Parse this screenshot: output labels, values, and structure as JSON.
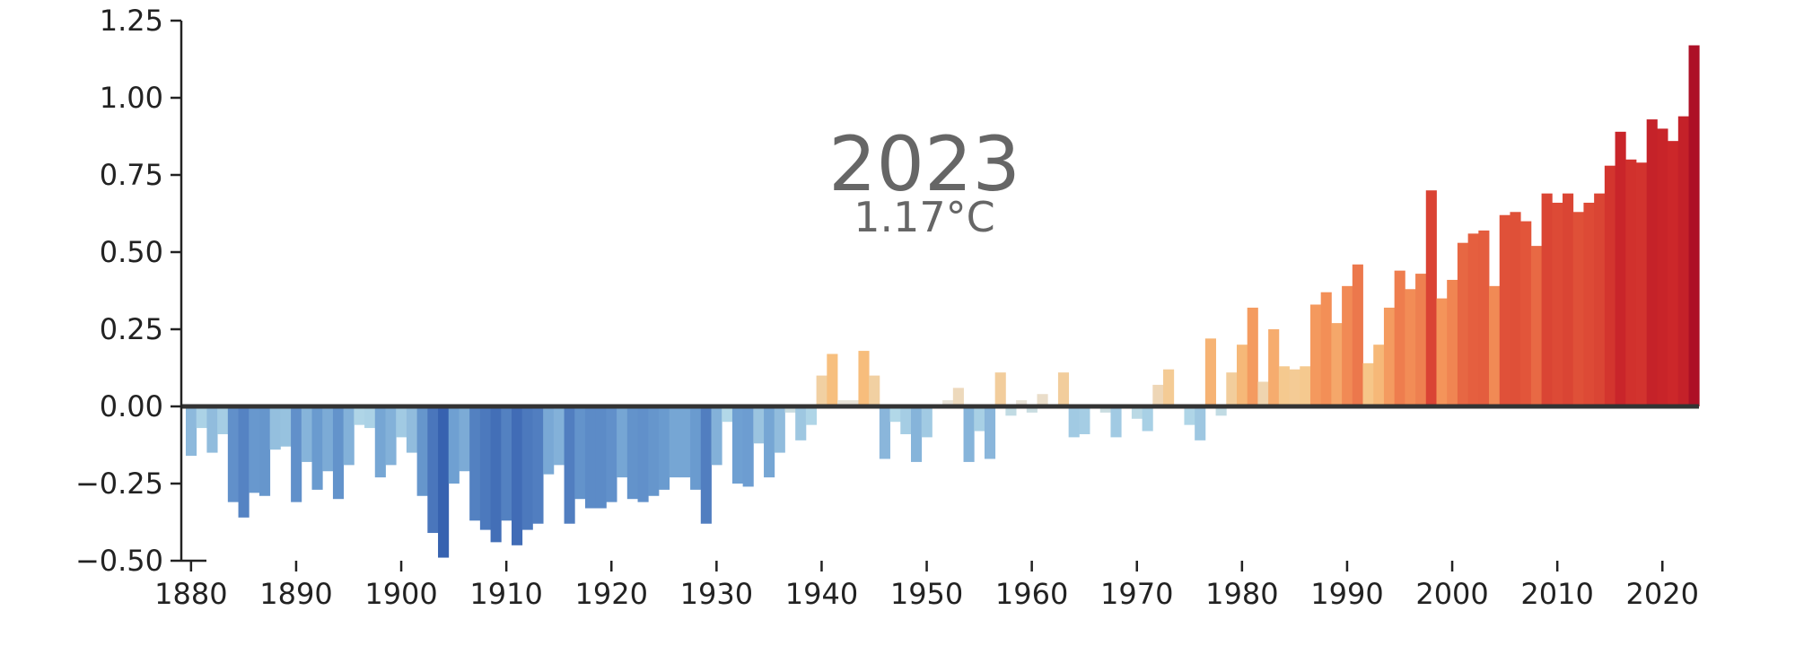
{
  "chart_data": {
    "type": "bar",
    "title": "",
    "xlabel": "",
    "ylabel": "",
    "highlight": {
      "year": "2023",
      "value_label": "1.17°C"
    },
    "x": [
      1880,
      1881,
      1882,
      1883,
      1884,
      1885,
      1886,
      1887,
      1888,
      1889,
      1890,
      1891,
      1892,
      1893,
      1894,
      1895,
      1896,
      1897,
      1898,
      1899,
      1900,
      1901,
      1902,
      1903,
      1904,
      1905,
      1906,
      1907,
      1908,
      1909,
      1910,
      1911,
      1912,
      1913,
      1914,
      1915,
      1916,
      1917,
      1918,
      1919,
      1920,
      1921,
      1922,
      1923,
      1924,
      1925,
      1926,
      1927,
      1928,
      1929,
      1930,
      1931,
      1932,
      1933,
      1934,
      1935,
      1936,
      1937,
      1938,
      1939,
      1940,
      1941,
      1942,
      1943,
      1944,
      1945,
      1946,
      1947,
      1948,
      1949,
      1950,
      1951,
      1952,
      1953,
      1954,
      1955,
      1956,
      1957,
      1958,
      1959,
      1960,
      1961,
      1962,
      1963,
      1964,
      1965,
      1966,
      1967,
      1968,
      1969,
      1970,
      1971,
      1972,
      1973,
      1974,
      1975,
      1976,
      1977,
      1978,
      1979,
      1980,
      1981,
      1982,
      1983,
      1984,
      1985,
      1986,
      1987,
      1988,
      1989,
      1990,
      1991,
      1992,
      1993,
      1994,
      1995,
      1996,
      1997,
      1998,
      1999,
      2000,
      2001,
      2002,
      2003,
      2004,
      2005,
      2006,
      2007,
      2008,
      2009,
      2010,
      2011,
      2012,
      2013,
      2014,
      2015,
      2016,
      2017,
      2018,
      2019,
      2020,
      2021,
      2022,
      2023
    ],
    "values": [
      -0.16,
      -0.07,
      -0.15,
      -0.09,
      -0.31,
      -0.36,
      -0.28,
      -0.29,
      -0.14,
      -0.13,
      -0.31,
      -0.18,
      -0.27,
      -0.21,
      -0.3,
      -0.19,
      -0.06,
      -0.07,
      -0.23,
      -0.19,
      -0.1,
      -0.15,
      -0.29,
      -0.41,
      -0.49,
      -0.25,
      -0.21,
      -0.37,
      -0.4,
      -0.44,
      -0.37,
      -0.45,
      -0.4,
      -0.38,
      -0.22,
      -0.19,
      -0.38,
      -0.3,
      -0.33,
      -0.33,
      -0.31,
      -0.23,
      -0.3,
      -0.31,
      -0.29,
      -0.27,
      -0.23,
      -0.23,
      -0.27,
      -0.38,
      -0.19,
      -0.05,
      -0.25,
      -0.26,
      -0.12,
      -0.23,
      -0.15,
      -0.02,
      -0.11,
      -0.06,
      0.1,
      0.17,
      0.02,
      0.02,
      0.18,
      0.1,
      -0.17,
      -0.05,
      -0.09,
      -0.18,
      -0.1,
      0.0,
      0.02,
      0.06,
      -0.18,
      -0.08,
      -0.17,
      0.11,
      -0.03,
      0.02,
      -0.02,
      0.04,
      0.0,
      0.11,
      -0.1,
      -0.09,
      0.0,
      -0.02,
      -0.1,
      0.0,
      -0.04,
      -0.08,
      0.07,
      0.12,
      0.0,
      -0.06,
      -0.11,
      0.22,
      -0.03,
      0.11,
      0.2,
      0.32,
      0.08,
      0.25,
      0.13,
      0.12,
      0.13,
      0.33,
      0.37,
      0.27,
      0.39,
      0.46,
      0.14,
      0.2,
      0.32,
      0.44,
      0.38,
      0.43,
      0.7,
      0.35,
      0.41,
      0.53,
      0.56,
      0.57,
      0.39,
      0.62,
      0.63,
      0.6,
      0.52,
      0.69,
      0.66,
      0.69,
      0.63,
      0.66,
      0.69,
      0.78,
      0.89,
      0.8,
      0.79,
      0.93,
      0.9,
      0.86,
      0.94,
      1.17
    ],
    "ylim": [
      -0.5,
      1.25
    ],
    "yticks": [
      "−0.50",
      "−0.25",
      "0.00",
      "0.25",
      "0.50",
      "0.75",
      "1.00",
      "1.25"
    ],
    "ytick_values": [
      -0.5,
      -0.25,
      0,
      0.25,
      0.5,
      0.75,
      1.0,
      1.25
    ],
    "xticks": [
      "1880",
      "1890",
      "1900",
      "1910",
      "1920",
      "1930",
      "1940",
      "1950",
      "1960",
      "1970",
      "1980",
      "1990",
      "2000",
      "2010",
      "2020"
    ],
    "grid": false,
    "legend": "none",
    "colors": {
      "zero_line": "#333333",
      "axis": "#222222",
      "text": "#222222",
      "headline": "#666666"
    }
  }
}
